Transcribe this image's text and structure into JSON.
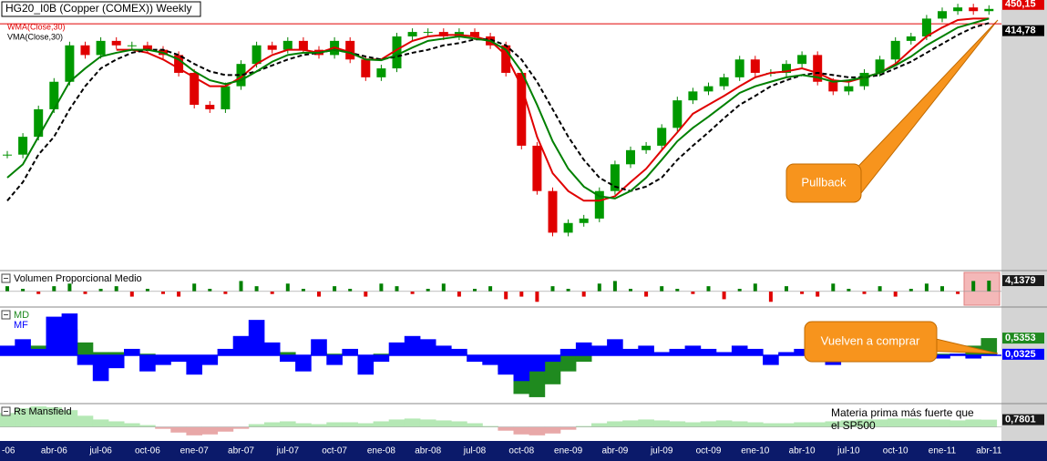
{
  "chart_data": [
    {
      "type": "candlestick",
      "title": "HG20_I0B (Copper (COMEX)) Weekly",
      "categories": [
        "-06",
        null,
        null,
        "abr-06",
        null,
        null,
        "jul-06",
        null,
        null,
        "oct-06",
        null,
        null,
        "ene-07",
        null,
        null,
        "abr-07",
        null,
        null,
        "jul-07",
        null,
        null,
        "oct-07",
        null,
        null,
        "ene-08",
        null,
        null,
        "abr-08",
        null,
        null,
        "jul-08",
        null,
        null,
        "oct-08",
        null,
        null,
        "ene-09",
        null,
        null,
        "abr-09",
        null,
        null,
        "jul-09",
        null,
        null,
        "oct-09",
        null,
        null,
        "ene-10",
        null,
        null,
        "abr-10",
        null,
        null,
        "jul-10",
        null,
        null,
        "oct-10",
        null,
        null,
        "ene-11",
        null,
        null,
        "abr-11"
      ],
      "close": [
        248,
        272,
        309,
        346,
        395,
        382,
        401,
        395,
        395,
        389,
        382,
        358,
        315,
        309,
        340,
        370,
        395,
        389,
        401,
        389,
        382,
        401,
        376,
        352,
        364,
        407,
        413,
        413,
        407,
        413,
        407,
        395,
        358,
        260,
        199,
        143,
        156,
        162,
        199,
        235,
        254,
        260,
        284,
        321,
        333,
        340,
        352,
        376,
        358,
        358,
        370,
        382,
        346,
        333,
        340,
        358,
        376,
        401,
        407,
        431,
        441,
        446,
        441,
        444
      ],
      "series": [
        {
          "name": "WMA(Close,30)",
          "color": "#e00000",
          "values": [
            null,
            null,
            null,
            null,
            null,
            null,
            null,
            389,
            389,
            385,
            376,
            364,
            352,
            340,
            340,
            352,
            370,
            382,
            389,
            389,
            385,
            392,
            386,
            376,
            376,
            389,
            401,
            407,
            409,
            409,
            407,
            401,
            382,
            340,
            272,
            223,
            199,
            186,
            186,
            192,
            211,
            229,
            254,
            278,
            303,
            315,
            327,
            340,
            352,
            358,
            360,
            364,
            358,
            348,
            346,
            352,
            358,
            370,
            389,
            407,
            419,
            429,
            431,
            431
          ]
        },
        {
          "name": "VMA(Close,30)",
          "color": "#000000",
          "dash": true,
          "values": [
            186,
            211,
            248,
            272,
            309,
            340,
            364,
            376,
            385,
            389,
            389,
            382,
            370,
            360,
            355,
            355,
            360,
            368,
            376,
            382,
            385,
            389,
            385,
            380,
            376,
            380,
            385,
            389,
            395,
            398,
            403,
            403,
            395,
            376,
            346,
            309,
            272,
            241,
            217,
            205,
            199,
            205,
            217,
            241,
            260,
            278,
            297,
            315,
            327,
            340,
            348,
            355,
            358,
            355,
            352,
            352,
            355,
            364,
            373,
            385,
            397,
            409,
            419,
            425
          ]
        },
        {
          "color": "#008000",
          "values": [
            217,
            235,
            272,
            309,
            346,
            364,
            380,
            385,
            389,
            389,
            385,
            376,
            360,
            348,
            343,
            348,
            360,
            373,
            382,
            385,
            385,
            389,
            385,
            376,
            375,
            382,
            392,
            401,
            404,
            407,
            404,
            401,
            389,
            360,
            315,
            266,
            229,
            205,
            192,
            189,
            199,
            217,
            241,
            266,
            284,
            299,
            315,
            331,
            340,
            346,
            352,
            355,
            352,
            346,
            348,
            352,
            358,
            368,
            380,
            395,
            407,
            419,
            425,
            431
          ]
        }
      ],
      "ylim": [
        92,
        456
      ],
      "hline": {
        "value": 424,
        "color": "#e00000"
      },
      "price_labels": [
        {
          "value": 450.15,
          "label": "450,15"
        },
        {
          "value": 414.78,
          "label": "414,78"
        }
      ],
      "annotation": "Pullback"
    },
    {
      "type": "bar",
      "title": "Volumen Proporcional Medio",
      "values": [
        2,
        1,
        -1,
        2,
        3,
        -1,
        1,
        2,
        -2,
        1,
        -1,
        -2,
        3,
        1,
        -1,
        4,
        2,
        -1,
        3,
        1,
        -2,
        2,
        1,
        -2,
        3,
        2,
        -1,
        1,
        3,
        -2,
        1,
        2,
        -3,
        -2,
        -4,
        2,
        1,
        -2,
        3,
        4,
        1,
        -2,
        2,
        1,
        -1,
        2,
        -3,
        1,
        3,
        -4,
        2,
        -1,
        -2,
        3,
        1,
        -1,
        2,
        -2,
        1,
        3,
        2,
        -1,
        4,
        4.1379
      ],
      "colors": {
        "up": "#008000",
        "down": "#e00000"
      },
      "ylim": [
        -6,
        8
      ],
      "last_labels": [
        {
          "value": 4.1379,
          "label": "4,1379"
        }
      ]
    },
    {
      "type": "bar",
      "series": [
        {
          "name": "MD",
          "color": "#1f8a1f",
          "values": [
            0.1,
            0.2,
            0.3,
            0.5,
            0.8,
            0.4,
            0.1,
            0.1,
            0.1,
            0.05,
            0,
            -0.1,
            -0.2,
            -0.1,
            0,
            0.1,
            0.3,
            0.2,
            0.1,
            0,
            0.1,
            0.05,
            0.1,
            0,
            0.05,
            0.1,
            0.2,
            0.2,
            0.1,
            0.1,
            0,
            -0.1,
            -0.5,
            -1.2,
            -1.3,
            -0.9,
            -0.5,
            -0.2,
            0.05,
            0.1,
            0.1,
            0.1,
            0.1,
            0.05,
            0.1,
            0.1,
            0.05,
            0.1,
            0.05,
            0,
            0.05,
            0.05,
            0,
            0,
            0.05,
            0.05,
            0.1,
            0.1,
            0.1,
            0.05,
            0.05,
            0.05,
            0.3,
            0.5353
          ]
        },
        {
          "name": "MF",
          "color": "#0000ff",
          "values": [
            0.3,
            0.5,
            0.2,
            1.2,
            1.3,
            -0.3,
            -0.8,
            -0.4,
            0.2,
            -0.5,
            -0.3,
            -0.2,
            -0.6,
            -0.3,
            0.2,
            0.6,
            1.1,
            0.4,
            -0.2,
            -0.5,
            0.5,
            -0.3,
            0.2,
            -0.6,
            -0.2,
            0.4,
            0.6,
            0.5,
            0.3,
            0.2,
            -0.2,
            -0.3,
            -0.6,
            -0.8,
            -0.5,
            -0.2,
            0.2,
            0.4,
            0.3,
            0.5,
            0.2,
            0.3,
            0.1,
            0.2,
            0.3,
            0.2,
            0.1,
            0.3,
            0.2,
            -0.3,
            0.1,
            0.2,
            -0.2,
            -0.3,
            0.2,
            0.1,
            0.2,
            0.3,
            0.2,
            0.1,
            -0.1,
            0.05,
            -0.1,
            0.0325
          ]
        }
      ],
      "ylim": [
        -1.5,
        1.5
      ],
      "last_labels": [
        {
          "value": 0.5353,
          "label": "0,5353"
        },
        {
          "value": 0.0325,
          "label": "0,0325"
        }
      ],
      "annotation": "Vuelven a comprar"
    },
    {
      "type": "bar",
      "title": "Rs Mansfield",
      "values": [
        1.5,
        2,
        2.2,
        2.1,
        1.8,
        1.2,
        0.8,
        0.6,
        0.4,
        0.2,
        -0.2,
        -0.6,
        -0.9,
        -0.8,
        -0.5,
        -0.2,
        0.3,
        0.5,
        0.6,
        0.4,
        0.3,
        0.5,
        0.5,
        0.4,
        0.6,
        0.8,
        0.9,
        0.8,
        0.7,
        0.6,
        0.4,
        0.1,
        -0.4,
        -0.8,
        -0.9,
        -0.7,
        -0.3,
        0.1,
        0.4,
        0.6,
        0.7,
        0.8,
        0.7,
        0.6,
        0.5,
        0.6,
        0.7,
        0.6,
        0.5,
        0.4,
        0.4,
        0.5,
        0.5,
        0.6,
        0.7,
        0.8,
        0.8,
        0.9,
        0.9,
        0.8,
        0.8,
        0.7,
        0.8,
        0.7801
      ],
      "colors": {
        "up": "#b5e8b5",
        "down": "#e8a8a8"
      },
      "ylim": [
        -1.5,
        2.5
      ],
      "last_labels": [
        {
          "value": 0.7801,
          "label": "0,7801"
        }
      ],
      "annotation": "Materia prima más fuerte que el SP500"
    }
  ]
}
